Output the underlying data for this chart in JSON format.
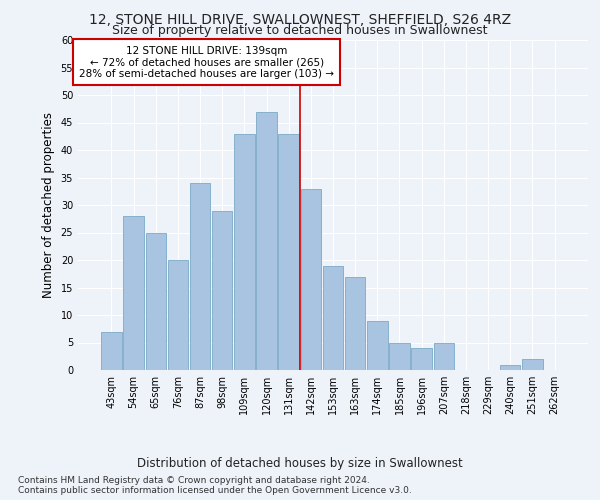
{
  "title": "12, STONE HILL DRIVE, SWALLOWNEST, SHEFFIELD, S26 4RZ",
  "subtitle": "Size of property relative to detached houses in Swallownest",
  "xlabel": "Distribution of detached houses by size in Swallownest",
  "ylabel": "Number of detached properties",
  "categories": [
    "43sqm",
    "54sqm",
    "65sqm",
    "76sqm",
    "87sqm",
    "98sqm",
    "109sqm",
    "120sqm",
    "131sqm",
    "142sqm",
    "153sqm",
    "163sqm",
    "174sqm",
    "185sqm",
    "196sqm",
    "207sqm",
    "218sqm",
    "229sqm",
    "240sqm",
    "251sqm",
    "262sqm"
  ],
  "values": [
    7,
    28,
    25,
    20,
    34,
    29,
    43,
    47,
    43,
    33,
    19,
    17,
    9,
    5,
    4,
    5,
    0,
    0,
    1,
    2,
    0
  ],
  "bar_color": "#a8c4e0",
  "bar_edgecolor": "#7aaac8",
  "vline_x": 8.5,
  "vline_color": "#cc0000",
  "annotation_text": "12 STONE HILL DRIVE: 139sqm\n← 72% of detached houses are smaller (265)\n28% of semi-detached houses are larger (103) →",
  "annotation_box_color": "#ffffff",
  "annotation_box_edgecolor": "#cc0000",
  "ylim": [
    0,
    60
  ],
  "yticks": [
    0,
    5,
    10,
    15,
    20,
    25,
    30,
    35,
    40,
    45,
    50,
    55,
    60
  ],
  "footnote": "Contains HM Land Registry data © Crown copyright and database right 2024.\nContains public sector information licensed under the Open Government Licence v3.0.",
  "bg_color": "#eef2f9",
  "grid_color": "#ffffff",
  "title_fontsize": 10,
  "subtitle_fontsize": 9,
  "tick_fontsize": 7,
  "ylabel_fontsize": 8.5,
  "xlabel_fontsize": 8.5,
  "footnote_fontsize": 6.5,
  "annotation_fontsize": 7.5
}
